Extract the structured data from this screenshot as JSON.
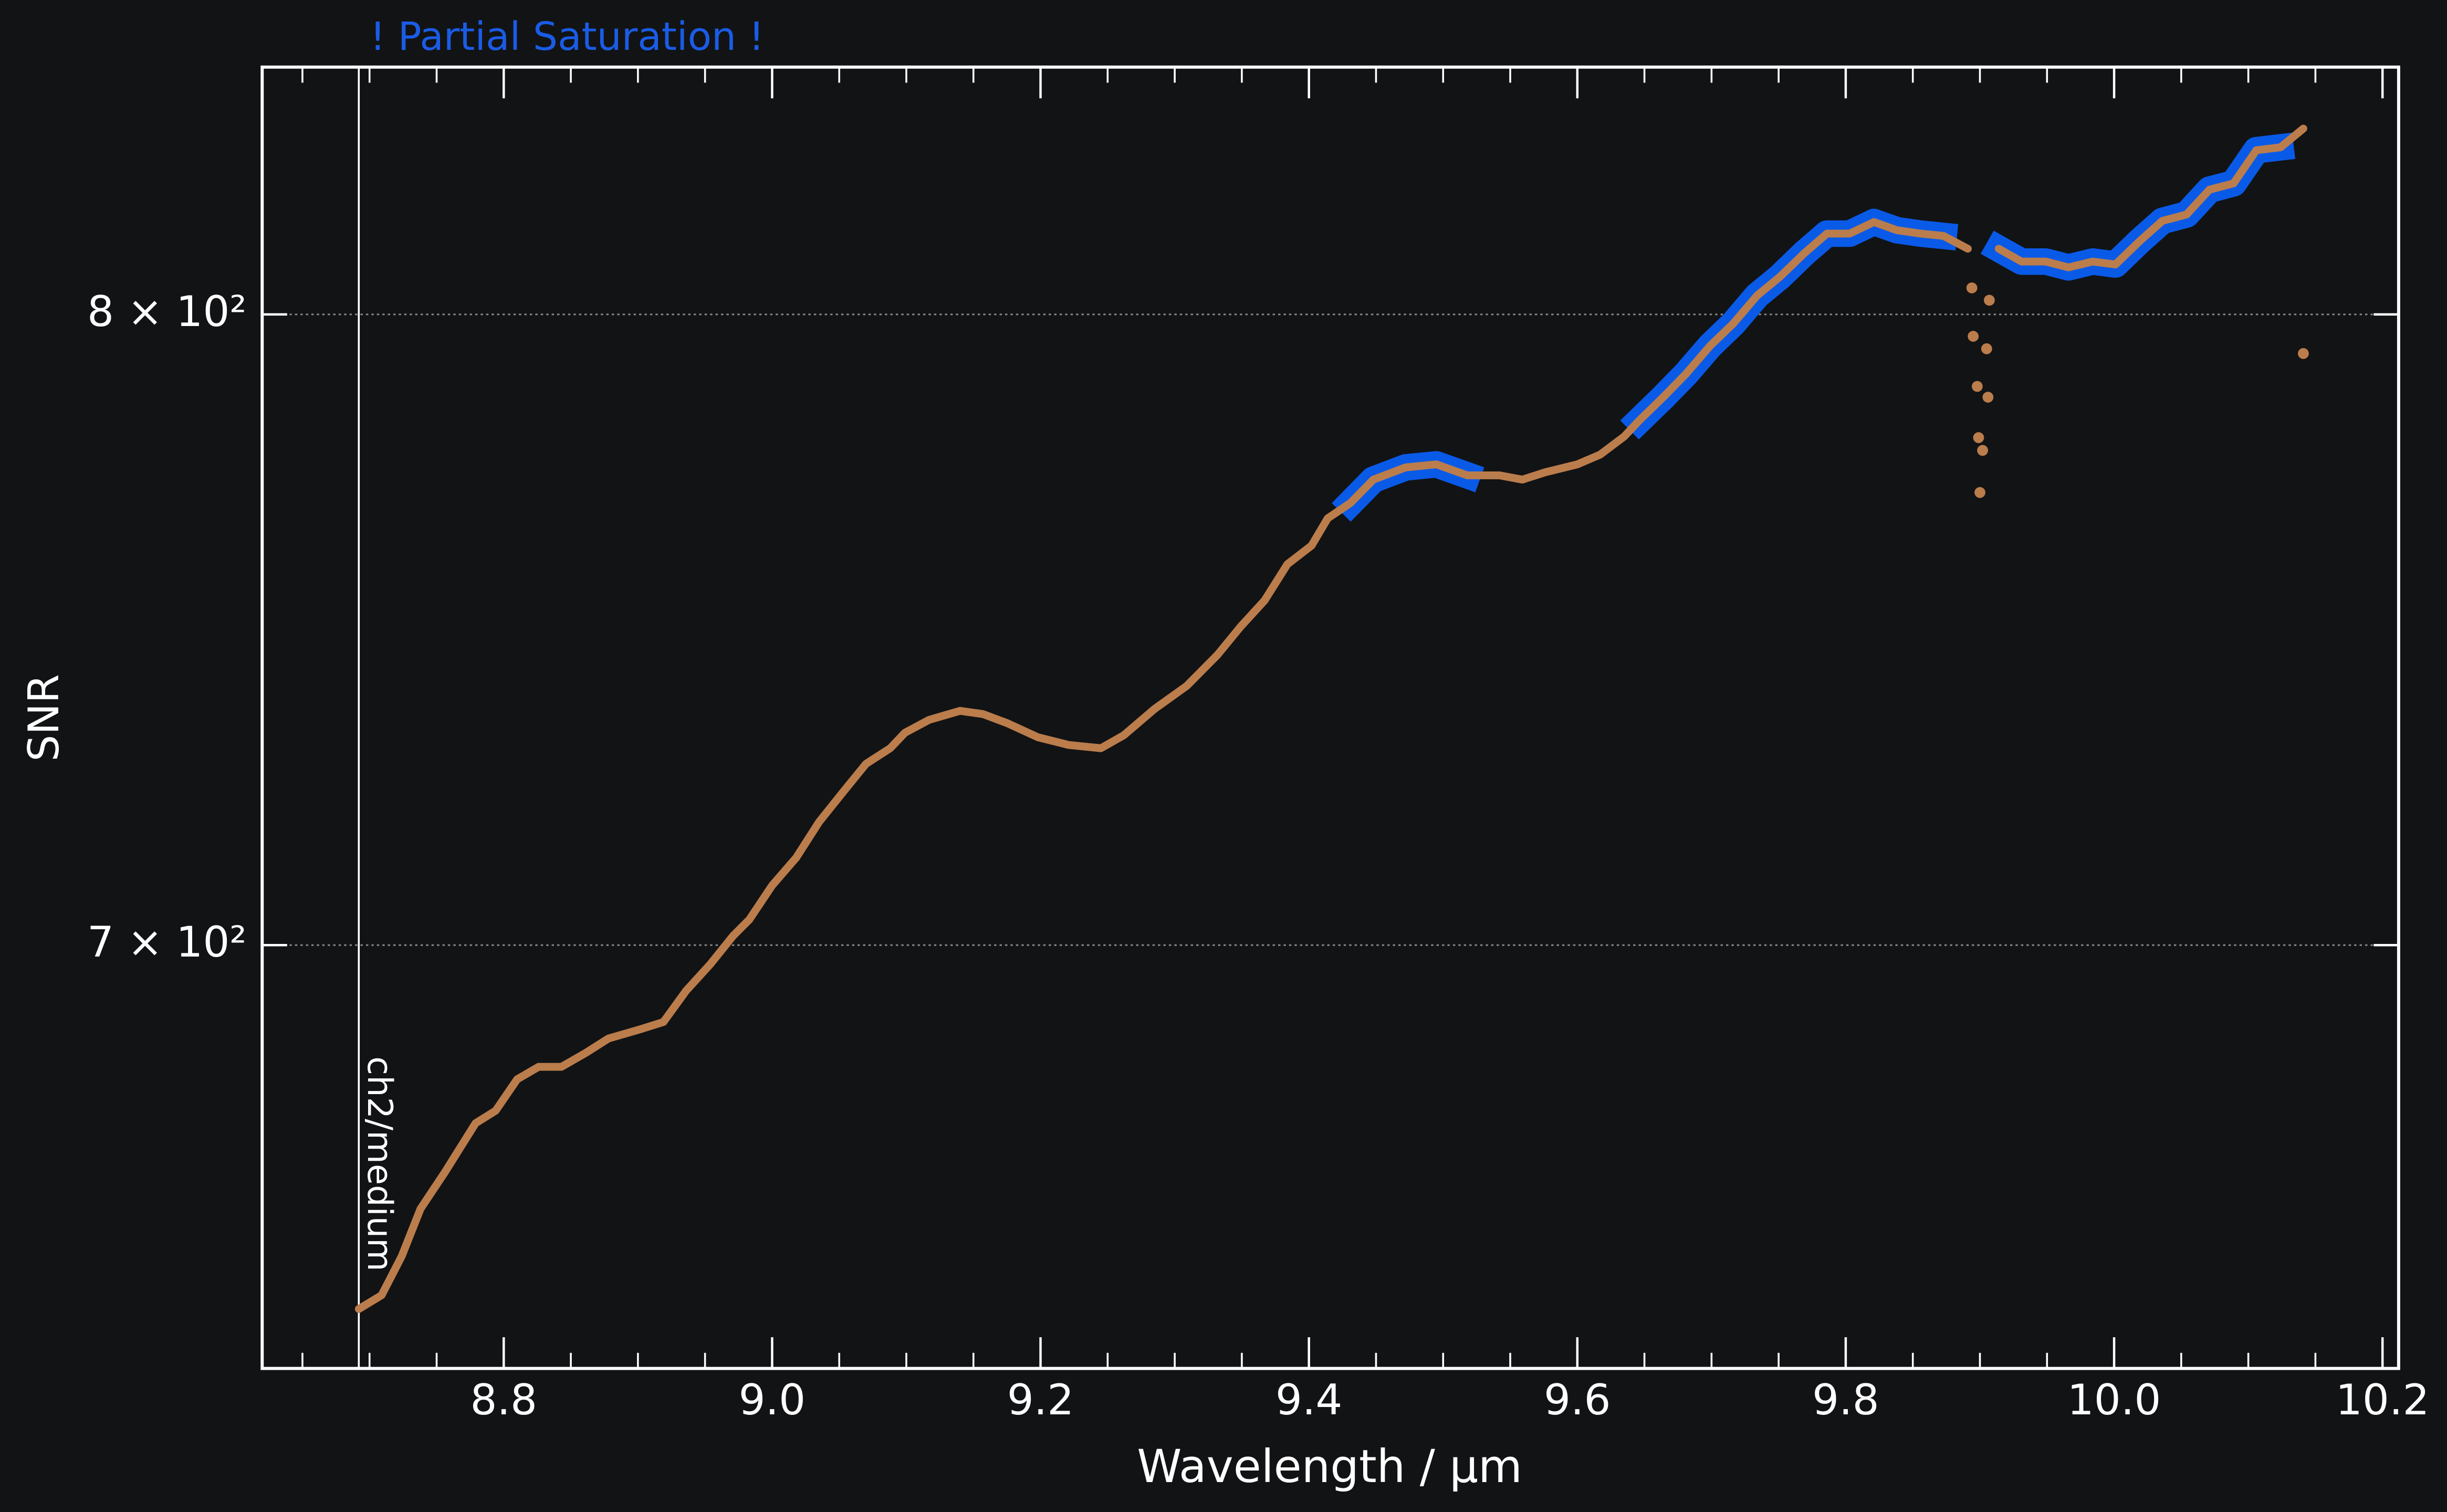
{
  "chart_data": {
    "type": "line",
    "annotation": "! Partial Saturation !",
    "annotation_color": "#1a5ce6",
    "x_label": "Wavelength / µm",
    "y_label": "SNR",
    "xlim": [
      8.62,
      10.212
    ],
    "ylim": [
      640,
      843
    ],
    "ylog": true,
    "grid": true,
    "xticks": [
      {
        "value": 8.8,
        "label": "8.8"
      },
      {
        "value": 9.0,
        "label": "9.0"
      },
      {
        "value": 9.2,
        "label": "9.2"
      },
      {
        "value": 9.4,
        "label": "9.4"
      },
      {
        "value": 9.6,
        "label": "9.6"
      },
      {
        "value": 9.8,
        "label": "9.8"
      },
      {
        "value": 10.0,
        "label": "10.0"
      },
      {
        "value": 10.2,
        "label": "10.2"
      }
    ],
    "xminor": [
      8.65,
      8.7,
      8.75,
      8.85,
      8.9,
      8.95,
      9.05,
      9.1,
      9.15,
      9.25,
      9.3,
      9.35,
      9.45,
      9.5,
      9.55,
      9.65,
      9.7,
      9.75,
      9.85,
      9.9,
      9.95,
      10.05,
      10.1,
      10.15
    ],
    "yticks": [
      {
        "value": 700,
        "label": "7 × 10²"
      },
      {
        "value": 800,
        "label": "8 × 10²"
      }
    ],
    "vline": {
      "x": 8.692,
      "label": "ch2/medium"
    },
    "saturation": [
      [
        9.42,
        9.53
      ],
      [
        9.64,
        9.88
      ],
      [
        9.91,
        10.14
      ]
    ],
    "saturation_color": "#0a5ae8",
    "series": [
      {
        "color": "#bb7d4c",
        "x": [
          8.692,
          8.709,
          8.724,
          8.738,
          8.756,
          8.779,
          8.794,
          8.81,
          8.826,
          8.843,
          8.861,
          8.878,
          8.901,
          8.919,
          8.936,
          8.954,
          8.971,
          8.983,
          9.0,
          9.018,
          9.035,
          9.053,
          9.07,
          9.088,
          9.099,
          9.117,
          9.14,
          9.157,
          9.175,
          9.198,
          9.221,
          9.245,
          9.262,
          9.285,
          9.309,
          9.332,
          9.349,
          9.367,
          9.384,
          9.402,
          9.414,
          9.431,
          9.448,
          9.472,
          9.495,
          9.518,
          9.542,
          9.559,
          9.576,
          9.6,
          9.617,
          9.635,
          9.646,
          9.664,
          9.681,
          9.699,
          9.716,
          9.734,
          9.751,
          9.769,
          9.786,
          9.803,
          9.821,
          9.838,
          9.856,
          9.873,
          9.891,
          9.898,
          9.914,
          9.931,
          9.949,
          9.966,
          9.984,
          10.001,
          10.019,
          10.036,
          10.054,
          10.071,
          10.089,
          10.106,
          10.124,
          10.141
        ],
        "values": [
          648.1,
          650.0,
          655.4,
          662.0,
          667.1,
          674.1,
          675.9,
          680.4,
          682.2,
          682.2,
          684.2,
          686.3,
          687.6,
          688.7,
          693.3,
          697.2,
          701.4,
          703.8,
          708.9,
          713.1,
          718.5,
          723.1,
          727.4,
          729.8,
          732.2,
          734.2,
          735.6,
          735.1,
          733.7,
          731.5,
          730.3,
          729.8,
          731.8,
          735.9,
          739.5,
          744.4,
          748.8,
          753.0,
          758.8,
          761.8,
          766.2,
          768.7,
          772.5,
          774.5,
          775.0,
          773.2,
          773.2,
          772.5,
          773.7,
          775.0,
          776.6,
          779.6,
          782.2,
          786.1,
          790.0,
          794.7,
          798.4,
          803.2,
          806.4,
          810.4,
          813.8,
          813.8,
          815.8,
          814.4,
          813.8,
          813.4,
          811.2,
          null,
          811.2,
          809.0,
          809.0,
          808.0,
          809.0,
          808.5,
          812.5,
          816.0,
          817.1,
          821.4,
          822.5,
          828.3,
          828.8,
          832.1
        ]
      }
    ],
    "points": {
      "color": "#bb7d4c",
      "x": [
        9.894,
        9.895,
        9.898,
        9.899,
        9.9,
        9.902,
        9.905,
        9.906,
        9.907,
        10.141
      ],
      "values": [
        804.5,
        796.3,
        787.9,
        779.4,
        770.4,
        777.3,
        794.2,
        786.1,
        802.4,
        793.4
      ]
    }
  }
}
